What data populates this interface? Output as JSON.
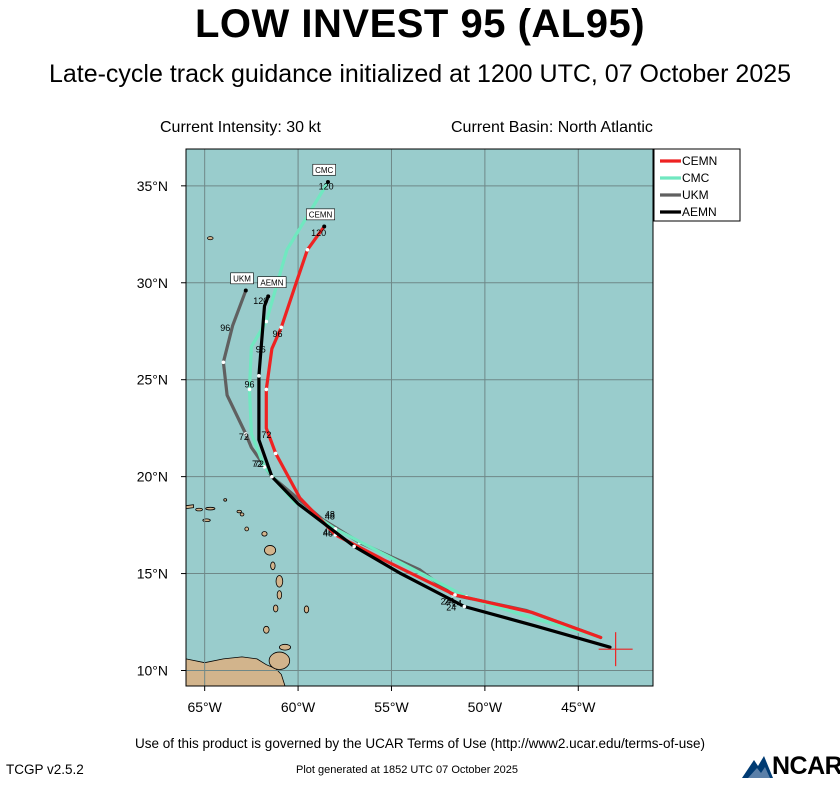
{
  "header": {
    "title": "LOW INVEST 95 (AL95)",
    "subtitle": "Late-cycle track guidance initialized at 1200 UTC, 07 October 2025",
    "intensity": "Current Intensity: 30 kt",
    "basin": "Current Basin: North Atlantic"
  },
  "map": {
    "lon_range": [
      -66,
      -41
    ],
    "lat_range": [
      9.2,
      36.9
    ],
    "ocean_color": "#99CCCC",
    "land_color": "#D2B48C",
    "grid_color": "#6F8888",
    "lon_ticks": [
      {
        "value": -65,
        "label": "65°W"
      },
      {
        "value": -60,
        "label": "60°W"
      },
      {
        "value": -55,
        "label": "55°W"
      },
      {
        "value": -50,
        "label": "50°W"
      },
      {
        "value": -45,
        "label": "45°W"
      }
    ],
    "lat_ticks": [
      {
        "value": 10,
        "label": "10°N"
      },
      {
        "value": 15,
        "label": "15°N"
      },
      {
        "value": 20,
        "label": "20°N"
      },
      {
        "value": 25,
        "label": "25°N"
      },
      {
        "value": 30,
        "label": "30°N"
      },
      {
        "value": 35,
        "label": "35°N"
      }
    ],
    "current_position": {
      "lon": -43.0,
      "lat": 11.1,
      "color": "#EE2222"
    }
  },
  "chart_data": {
    "type": "line",
    "x_label": "",
    "y_label": "",
    "series": [
      {
        "name": "UKM",
        "color": "#606060",
        "points": [
          [
            -43.8,
            11.7
          ],
          [
            -47.8,
            13.1
          ],
          [
            -51.7,
            13.9
          ],
          [
            -53.5,
            15.2
          ],
          [
            -56.7,
            16.6
          ],
          [
            -58.7,
            17.8
          ],
          [
            -61.4,
            20.0
          ],
          [
            -62.5,
            21.5
          ],
          [
            -62.8,
            22.2
          ],
          [
            -63.8,
            24.2
          ],
          [
            -64.0,
            25.9
          ],
          [
            -63.5,
            27.8
          ],
          [
            -62.8,
            29.6
          ]
        ],
        "labels": [
          {
            "text": "24",
            "lon": -51.5,
            "lat": 13.3
          },
          {
            "text": "48",
            "lon": -58.4,
            "lat": 16.9
          },
          {
            "text": "72",
            "lon": -62.9,
            "lat": 21.9
          },
          {
            "text": "96",
            "lon": -63.9,
            "lat": 27.5
          }
        ],
        "end_label": "UKM",
        "end_pos": [
          -63.0,
          30.1
        ]
      },
      {
        "name": "CMC",
        "color": "#70E8C0",
        "points": [
          [
            -43.8,
            11.7
          ],
          [
            -47.8,
            12.8
          ],
          [
            -51.0,
            13.8
          ],
          [
            -55.2,
            15.9
          ],
          [
            -58.0,
            17.3
          ],
          [
            -60.2,
            18.7
          ],
          [
            -61.8,
            20.5
          ],
          [
            -62.5,
            22.2
          ],
          [
            -62.6,
            24.5
          ],
          [
            -62.5,
            26.7
          ],
          [
            -61.7,
            28.0
          ],
          [
            -60.6,
            31.7
          ],
          [
            -58.4,
            35.2
          ]
        ],
        "labels": [
          {
            "text": "24",
            "lon": -51.8,
            "lat": 13.1
          },
          {
            "text": "48",
            "lon": -58.4,
            "lat": 17.0
          },
          {
            "text": "72",
            "lon": -62.1,
            "lat": 20.5
          },
          {
            "text": "96",
            "lon": -62.6,
            "lat": 24.6
          }
        ],
        "end_label": "CMC",
        "end_pos": [
          -58.6,
          35.7
        ]
      },
      {
        "name": "CEMN",
        "color": "#EE2222",
        "points": [
          [
            -43.8,
            11.7
          ],
          [
            -47.5,
            13.0
          ],
          [
            -51.6,
            13.9
          ],
          [
            -55.4,
            15.7
          ],
          [
            -58.0,
            17.0
          ],
          [
            -59.9,
            18.9
          ],
          [
            -61.2,
            21.2
          ],
          [
            -61.7,
            22.5
          ],
          [
            -61.7,
            24.5
          ],
          [
            -61.4,
            26.6
          ],
          [
            -60.9,
            27.7
          ],
          [
            -60.1,
            30.0
          ],
          [
            -59.5,
            31.7
          ],
          [
            -58.6,
            32.9
          ]
        ],
        "labels": [
          {
            "text": "24",
            "lon": -51.9,
            "lat": 13.4
          },
          {
            "text": "48",
            "lon": -58.3,
            "lat": 17.9
          },
          {
            "text": "72",
            "lon": -61.7,
            "lat": 22.0
          },
          {
            "text": "96",
            "lon": -61.1,
            "lat": 27.2
          }
        ],
        "end_label": "CEMN",
        "end_pos": [
          -58.8,
          33.4
        ]
      },
      {
        "name": "AEMN",
        "color": "#000000",
        "points": [
          [
            -43.3,
            11.2
          ],
          [
            -47.3,
            12.3
          ],
          [
            -51.1,
            13.3
          ],
          [
            -54.5,
            15.0
          ],
          [
            -57.0,
            16.4
          ],
          [
            -60.0,
            18.6
          ],
          [
            -61.4,
            20.0
          ],
          [
            -62.1,
            21.9
          ],
          [
            -62.1,
            25.2
          ],
          [
            -61.8,
            28.8
          ],
          [
            -61.6,
            29.3
          ]
        ],
        "labels": [
          {
            "text": "24",
            "lon": -52.1,
            "lat": 13.4
          },
          {
            "text": "48",
            "lon": -58.3,
            "lat": 17.8
          },
          {
            "text": "72",
            "lon": -62.2,
            "lat": 20.5
          },
          {
            "text": "96",
            "lon": -62.0,
            "lat": 26.4
          },
          {
            "text": "120",
            "lon": -62.0,
            "lat": 28.9
          }
        ],
        "end_label": "AEMN",
        "end_pos": [
          -61.4,
          29.9
        ]
      }
    ],
    "extra_labels": [
      {
        "text": "120",
        "lon": -58.5,
        "lat": 34.8
      },
      {
        "text": "120",
        "lon": -58.9,
        "lat": 32.4
      }
    ],
    "legend": {
      "position": "top-right",
      "order": [
        "CEMN",
        "CMC",
        "UKM",
        "AEMN"
      ]
    }
  },
  "footer": {
    "terms": "Use of this product is governed by the UCAR Terms of Use (http://www2.ucar.edu/terms-of-use)",
    "version": "TCGP v2.5.2",
    "plot_generated": "Plot generated at 1852 UTC   07 October 2025",
    "logo_text": "NCAR"
  }
}
